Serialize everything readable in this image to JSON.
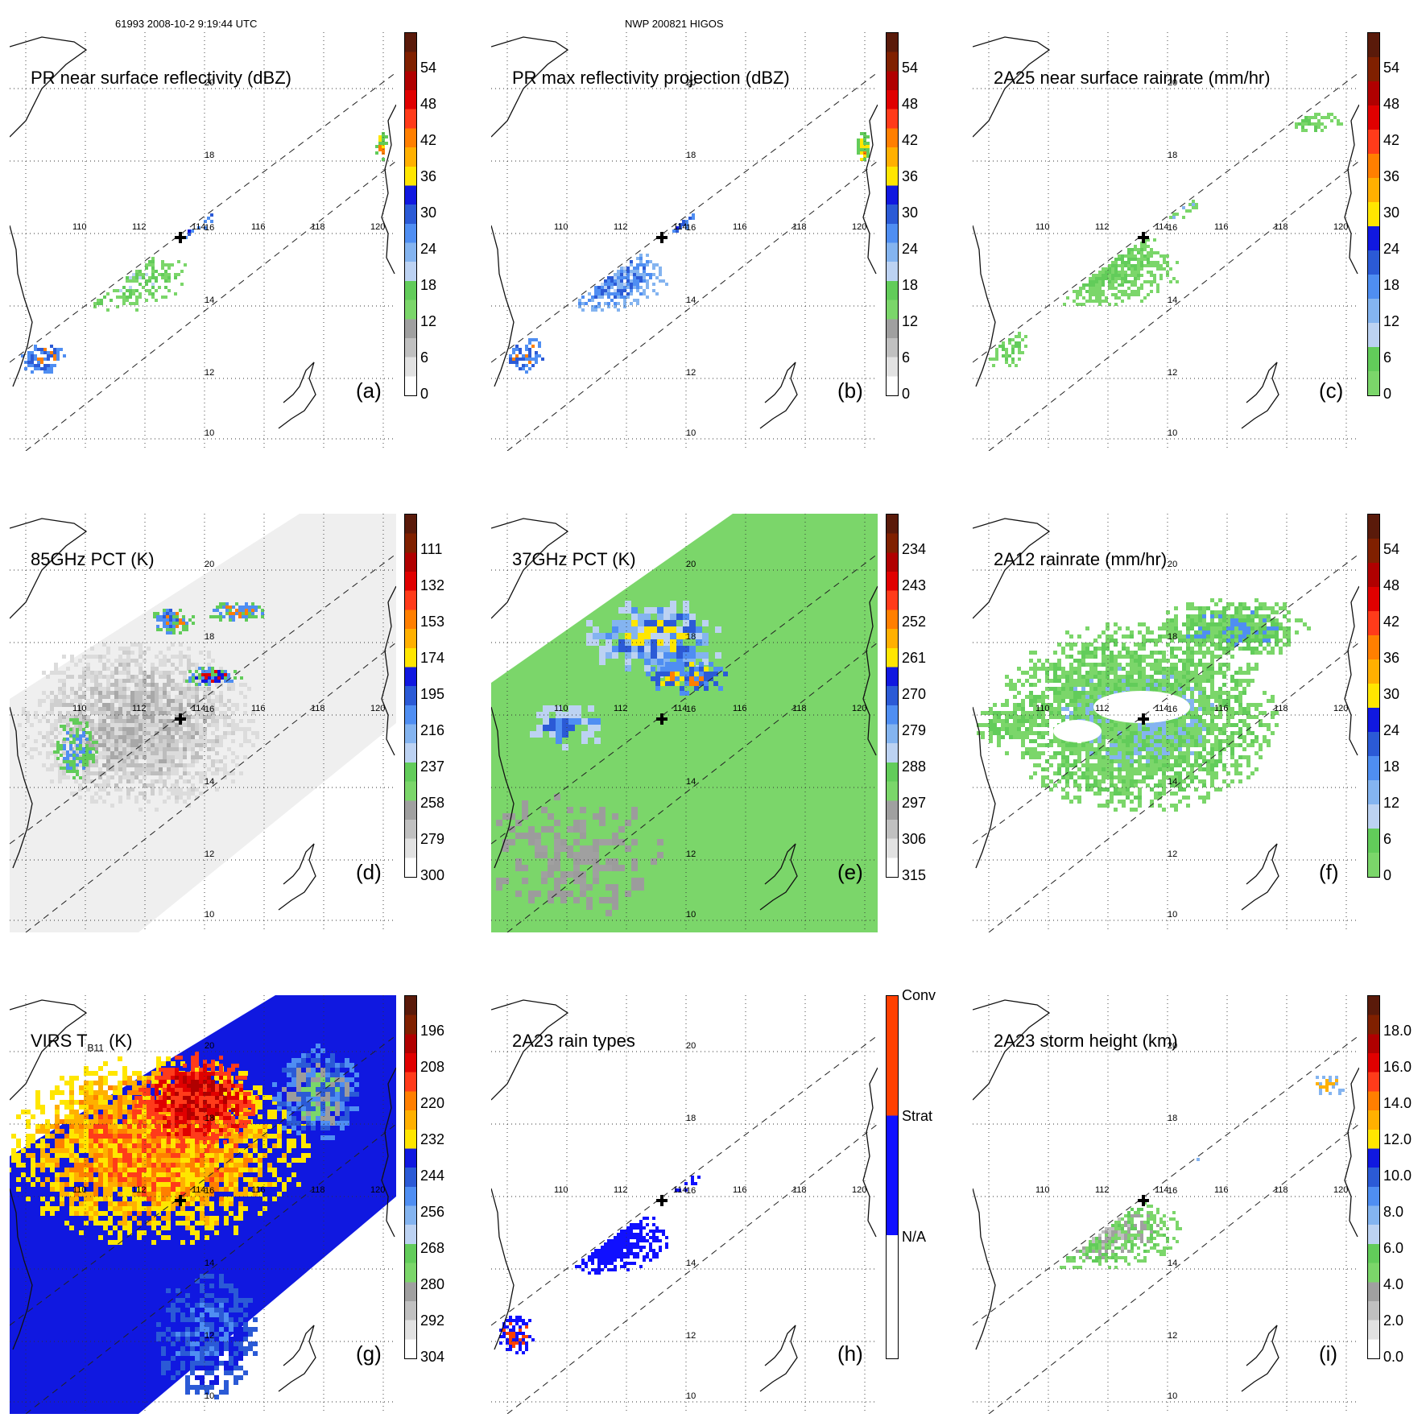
{
  "header": {
    "left": "61993 2008-10-2 9:19:44 UTC",
    "center": "NWP 200821 HIGOS"
  },
  "lon_labels": [
    "110",
    "112",
    "114",
    "116",
    "118",
    "120"
  ],
  "lat_labels": [
    "10",
    "12",
    "14",
    "16",
    "18",
    "20"
  ],
  "storm_marker": "cross-icon",
  "panels": [
    {
      "id": "a",
      "title": "PR near surface reflectivity (dBZ)",
      "label": "(a)",
      "ticks": [
        "54",
        "48",
        "42",
        "36",
        "30",
        "24",
        "18",
        "12",
        "6",
        "0"
      ],
      "scale": "dbz",
      "field": "pr"
    },
    {
      "id": "b",
      "title": "PR max reflectivity projection (dBZ)",
      "label": "(b)",
      "ticks": [
        "54",
        "48",
        "42",
        "36",
        "30",
        "24",
        "18",
        "12",
        "6",
        "0"
      ],
      "scale": "dbz",
      "field": "prmax"
    },
    {
      "id": "c",
      "title": "2A25 near surface rainrate (mm/hr)",
      "label": "(c)",
      "ticks": [
        "54",
        "48",
        "42",
        "36",
        "30",
        "24",
        "18",
        "12",
        "6",
        "0"
      ],
      "scale": "rain",
      "field": "rain25"
    },
    {
      "id": "d",
      "title": "85GHz PCT (K)",
      "label": "(d)",
      "ticks": [
        "111",
        "132",
        "153",
        "174",
        "195",
        "216",
        "237",
        "258",
        "279",
        "300"
      ],
      "scale": "pct85",
      "field": "pct85"
    },
    {
      "id": "e",
      "title": "37GHz PCT (K)",
      "label": "(e)",
      "ticks": [
        "234",
        "243",
        "252",
        "261",
        "270",
        "279",
        "288",
        "297",
        "306",
        "315"
      ],
      "scale": "pct37",
      "field": "pct37"
    },
    {
      "id": "f",
      "title": "2A12 rainrate (mm/hr)",
      "label": "(f)",
      "ticks": [
        "54",
        "48",
        "42",
        "36",
        "30",
        "24",
        "18",
        "12",
        "6",
        "0"
      ],
      "scale": "rain",
      "field": "rain12"
    },
    {
      "id": "g",
      "title": "VIRS T",
      "title_sub": "B11",
      "title_tail": " (K)",
      "label": "(g)",
      "ticks": [
        "196",
        "208",
        "220",
        "232",
        "244",
        "256",
        "268",
        "280",
        "292",
        "304"
      ],
      "scale": "virs",
      "field": "virs"
    },
    {
      "id": "h",
      "title": "2A23 rain types",
      "label": "(h)",
      "ticks": [
        "Conv",
        "Strat",
        "N/A"
      ],
      "scale": "types",
      "field": "types"
    },
    {
      "id": "i",
      "title": "2A23 storm height (km)",
      "label": "(i)",
      "ticks": [
        "18.0",
        "16.0",
        "14.0",
        "12.0",
        "10.0",
        "8.0",
        "6.0",
        "4.0",
        "2.0",
        "0.0"
      ],
      "scale": "height",
      "field": "height"
    }
  ],
  "colors": {
    "dbz": [
      "#ffffff",
      "#e2e2e2",
      "#c0c0c0",
      "#a0a0a0",
      "#7bd66a",
      "#62cc5a",
      "#bcd2f2",
      "#84b4f0",
      "#4f8ef2",
      "#2b5ad6",
      "#1018e0",
      "#ffe600",
      "#ffb000",
      "#ff7f00",
      "#ff3b1a",
      "#e00000",
      "#b00000",
      "#802000",
      "#5a1a0a"
    ],
    "rain": [
      "#7bd66a",
      "#62cc5a",
      "#bcd2f2",
      "#84b4f0",
      "#4f8ef2",
      "#2b5ad6",
      "#1018e0",
      "#ffe600",
      "#ffb000",
      "#ff7f00",
      "#ff3b1a",
      "#e00000",
      "#b00000",
      "#802000",
      "#5a1a0a"
    ],
    "pct85": [
      "#ffffff",
      "#e2e2e2",
      "#c0c0c0",
      "#a0a0a0",
      "#7bd66a",
      "#62cc5a",
      "#bcd2f2",
      "#84b4f0",
      "#4f8ef2",
      "#2b5ad6",
      "#1018e0",
      "#ffe600",
      "#ffb000",
      "#ff7f00",
      "#ff3b1a",
      "#e00000",
      "#b00000",
      "#802000",
      "#5a1a0a"
    ],
    "pct37": [
      "#ffffff",
      "#e2e2e2",
      "#c0c0c0",
      "#a0a0a0",
      "#7bd66a",
      "#62cc5a",
      "#bcd2f2",
      "#84b4f0",
      "#4f8ef2",
      "#2b5ad6",
      "#1018e0",
      "#ffe600",
      "#ffb000",
      "#ff7f00",
      "#ff3b1a",
      "#e00000",
      "#b00000",
      "#802000",
      "#5a1a0a"
    ],
    "virs": [
      "#ffffff",
      "#e2e2e2",
      "#c0c0c0",
      "#a0a0a0",
      "#7bd66a",
      "#62cc5a",
      "#bcd2f2",
      "#84b4f0",
      "#4f8ef2",
      "#2b5ad6",
      "#1018e0",
      "#ffe600",
      "#ffb000",
      "#ff7f00",
      "#ff3b1a",
      "#e00000",
      "#b00000",
      "#802000",
      "#5a1a0a"
    ],
    "types": [
      "#ffffff",
      "#1010ff",
      "#ff4000"
    ],
    "height": [
      "#ffffff",
      "#e2e2e2",
      "#c0c0c0",
      "#a0a0a0",
      "#7bd66a",
      "#62cc5a",
      "#bcd2f2",
      "#84b4f0",
      "#4f8ef2",
      "#2b5ad6",
      "#1018e0",
      "#ffe600",
      "#ffb000",
      "#ff7f00",
      "#ff3b1a",
      "#e00000",
      "#b00000",
      "#802000",
      "#5a1a0a"
    ]
  }
}
